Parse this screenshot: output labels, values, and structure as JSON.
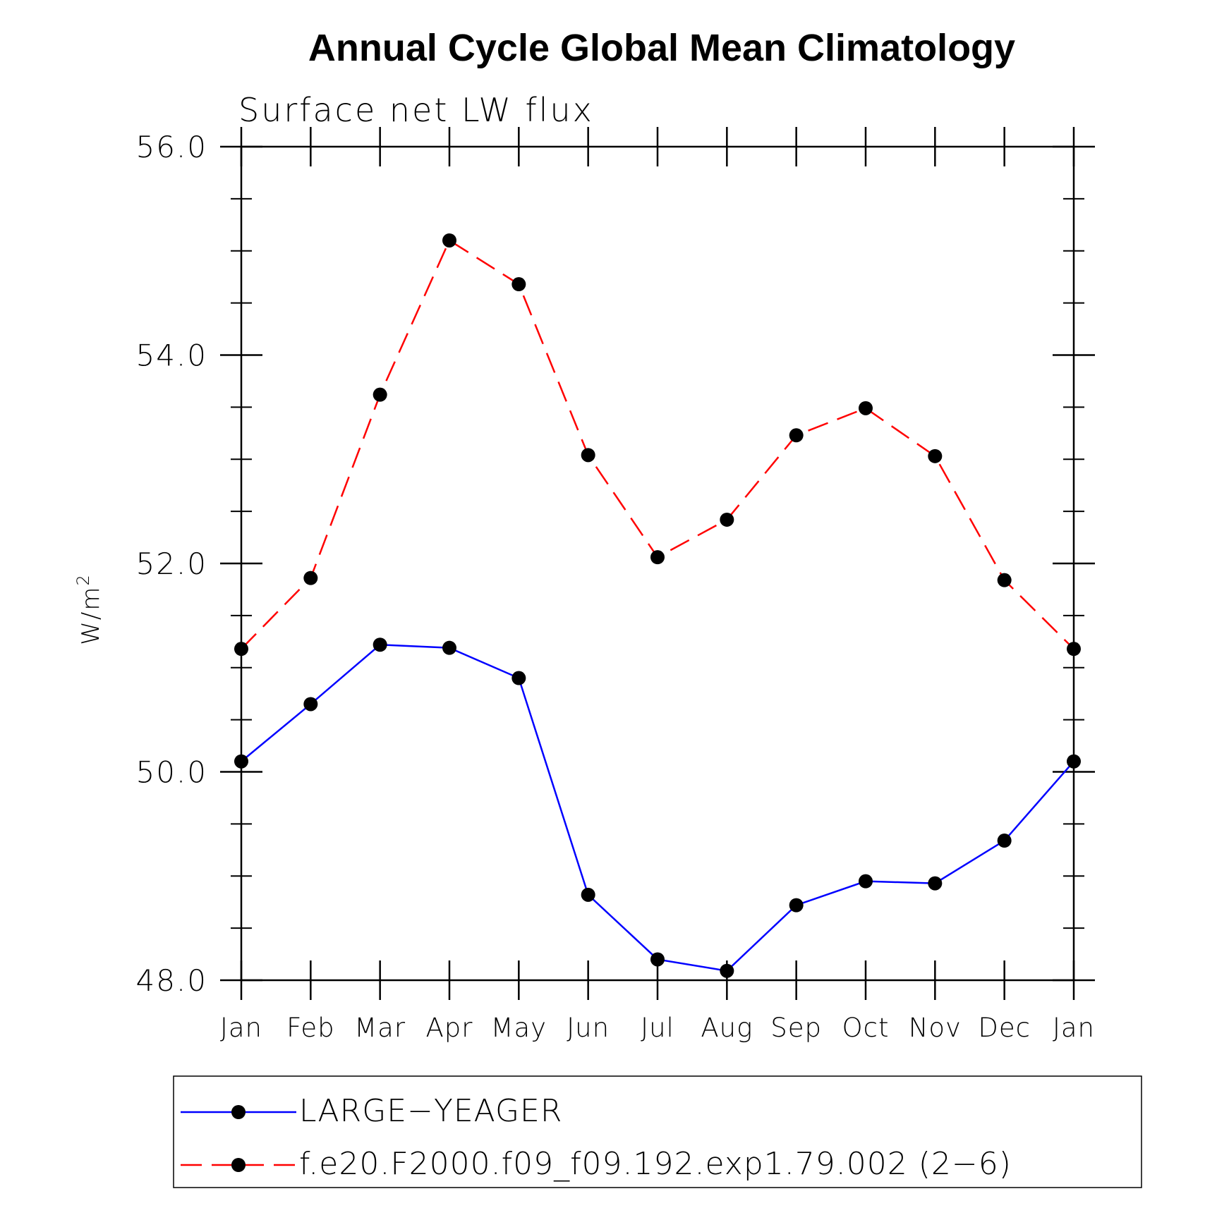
{
  "chart_data": {
    "type": "line",
    "title": "Annual Cycle Global Mean Climatology",
    "subtitle": "Surface net LW flux",
    "ylabel_base": "W/m",
    "ylabel_sup": "2",
    "xlabel": "",
    "categories": [
      "Jan",
      "Feb",
      "Mar",
      "Apr",
      "May",
      "Jun",
      "Jul",
      "Aug",
      "Sep",
      "Oct",
      "Nov",
      "Dec",
      "Jan"
    ],
    "ylim": [
      48.0,
      56.0
    ],
    "yticks": [
      48.0,
      50.0,
      52.0,
      54.0,
      56.0
    ],
    "ytick_labels": [
      "48.0",
      "50.0",
      "52.0",
      "54.0",
      "56.0"
    ],
    "yminor_step": 0.5,
    "grid": false,
    "legend_position": "bottom",
    "series": [
      {
        "name": "LARGE−YEAGER",
        "color": "#0000ff",
        "dash": "solid",
        "marker_color": "#000000",
        "values": [
          50.1,
          50.65,
          51.22,
          51.19,
          50.9,
          48.82,
          48.2,
          48.09,
          48.72,
          48.95,
          48.93,
          49.34,
          50.1
        ]
      },
      {
        "name": "f.e20.F2000.f09_f09.192.exp1.79.002 (2−6)",
        "color": "#ff0000",
        "dash": "dashed",
        "marker_color": "#000000",
        "values": [
          51.18,
          51.86,
          53.62,
          55.1,
          54.68,
          53.04,
          52.06,
          52.42,
          53.23,
          53.49,
          53.03,
          51.84,
          51.18
        ]
      }
    ]
  }
}
